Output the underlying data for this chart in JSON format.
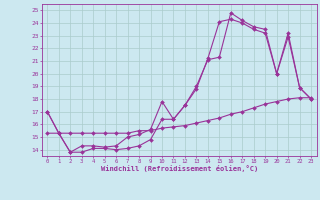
{
  "title": "",
  "xlabel": "Windchill (Refroidissement éolien,°C)",
  "ylabel": "",
  "background_color": "#cce8f0",
  "line_color": "#993399",
  "grid_color": "#aacccc",
  "xlim": [
    -0.5,
    23.5
  ],
  "ylim": [
    13.5,
    25.5
  ],
  "yticks": [
    14,
    15,
    16,
    17,
    18,
    19,
    20,
    21,
    22,
    23,
    24,
    25
  ],
  "xticks": [
    0,
    1,
    2,
    3,
    4,
    5,
    6,
    7,
    8,
    9,
    10,
    11,
    12,
    13,
    14,
    15,
    16,
    17,
    18,
    19,
    20,
    21,
    22,
    23
  ],
  "line1_x": [
    0,
    1,
    2,
    3,
    4,
    5,
    6,
    7,
    8,
    9,
    10,
    11,
    12,
    13,
    14,
    15,
    16,
    17,
    18,
    19,
    20,
    21,
    22,
    23
  ],
  "line1_y": [
    17.0,
    15.3,
    13.8,
    13.8,
    14.1,
    14.1,
    14.0,
    14.1,
    14.3,
    14.8,
    16.4,
    16.4,
    17.5,
    18.8,
    21.2,
    24.1,
    24.3,
    24.0,
    23.5,
    23.2,
    20.0,
    22.9,
    18.9,
    18.0
  ],
  "line2_x": [
    0,
    1,
    2,
    3,
    4,
    5,
    6,
    7,
    8,
    9,
    10,
    11,
    12,
    13,
    14,
    15,
    16,
    17,
    18,
    19,
    20,
    21,
    22,
    23
  ],
  "line2_y": [
    17.0,
    15.3,
    13.8,
    14.3,
    14.3,
    14.2,
    14.3,
    15.0,
    15.2,
    15.6,
    17.8,
    16.4,
    17.5,
    19.0,
    21.1,
    21.3,
    24.8,
    24.2,
    23.7,
    23.5,
    20.0,
    23.2,
    18.9,
    18.0
  ],
  "line3_x": [
    0,
    1,
    2,
    3,
    4,
    5,
    6,
    7,
    8,
    9,
    10,
    11,
    12,
    13,
    14,
    15,
    16,
    17,
    18,
    19,
    20,
    21,
    22,
    23
  ],
  "line3_y": [
    15.3,
    15.3,
    15.3,
    15.3,
    15.3,
    15.3,
    15.3,
    15.3,
    15.5,
    15.5,
    15.7,
    15.8,
    15.9,
    16.1,
    16.3,
    16.5,
    16.8,
    17.0,
    17.3,
    17.6,
    17.8,
    18.0,
    18.1,
    18.1
  ]
}
